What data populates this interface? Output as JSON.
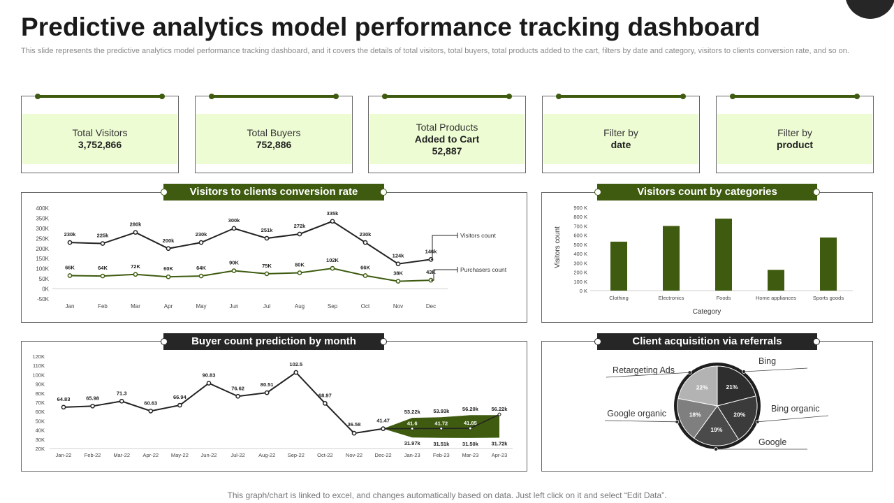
{
  "page": {
    "title": "Predictive analytics model performance tracking dashboard",
    "subtitle": "This slide represents the predictive analytics model performance tracking dashboard, and it covers the details of total visitors, total buyers, total products added to the cart, filters by date and category, visitors to clients conversion rate, and so on.",
    "footer": "This graph/chart is linked to excel,  and changes automatically based on data. Just left click on it and select “Edit Data”."
  },
  "kpis": [
    {
      "label": "Total Visitors",
      "value": "3,752,866"
    },
    {
      "label": "Total Buyers",
      "value": "752,886"
    },
    {
      "label": "Total Products",
      "label2": "Added to Cart",
      "value": "52,887"
    },
    {
      "label": "Filter by",
      "value": "date"
    },
    {
      "label": "Filter by",
      "value": "product"
    }
  ],
  "colors": {
    "accent_green": "#3e5b10",
    "band_green": "#eefcd4",
    "dark": "#262626"
  },
  "chart_data": [
    {
      "type": "line",
      "title": "Visitors to clients conversion rate",
      "categories": [
        "Jan",
        "Feb",
        "Mar",
        "Apr",
        "May",
        "Jun",
        "Jul",
        "Aug",
        "Sep",
        "Oct",
        "Nov",
        "Dec"
      ],
      "series": [
        {
          "name": "Visitors count",
          "values": [
            230,
            225,
            280,
            200,
            230,
            300,
            251,
            272,
            335,
            230,
            124,
            146
          ],
          "labels": [
            "230k",
            "225k",
            "280k",
            "200k",
            "230k",
            "300k",
            "251k",
            "272k",
            "335k",
            "230k",
            "124k",
            "146k"
          ],
          "color": "#222222"
        },
        {
          "name": "Purchasers count",
          "values": [
            66,
            64,
            72,
            60,
            64,
            90,
            75,
            80,
            102,
            66,
            38,
            43
          ],
          "labels": [
            "66K",
            "64K",
            "72K",
            "60K",
            "64K",
            "90K",
            "75K",
            "80K",
            "102K",
            "66K",
            "38K",
            "43K"
          ],
          "color": "#3e5b10"
        }
      ],
      "yticks": [
        "400K",
        "350K",
        "300K",
        "250K",
        "200K",
        "150K",
        "100K",
        "50K",
        "0K",
        "-50K"
      ],
      "ylim": [
        -50,
        400
      ],
      "unit": "K"
    },
    {
      "type": "bar",
      "title": "Visitors count by categories",
      "categories": [
        "Clothing",
        "Electronics",
        "Foods",
        "Home appliances",
        "Sports goods"
      ],
      "values": [
        530,
        700,
        780,
        225,
        575
      ],
      "yticks": [
        "900 K",
        "800 K",
        "700 K",
        "600 K",
        "500 K",
        "400 K",
        "300 K",
        "200 K",
        "100 K",
        "0 K"
      ],
      "ylim": [
        0,
        900
      ],
      "xlabel": "Category",
      "ylabel": "Visitors count",
      "color": "#3e5b10"
    },
    {
      "type": "line",
      "title": "Buyer count prediction by month",
      "categories": [
        "Jan-22",
        "Feb-22",
        "Mar-22",
        "Apr-22",
        "May-22",
        "Jun-22",
        "Jul-22",
        "Aug-22",
        "Sep-22",
        "Oct-22",
        "Nov-22",
        "Dec-22",
        "Jan-23",
        "Feb-23",
        "Mar-23",
        "Apr-23"
      ],
      "actual": [
        64.83,
        65.98,
        71.3,
        60.63,
        66.94,
        90.83,
        76.62,
        80.51,
        102.5,
        68.97,
        36.58,
        41.47
      ],
      "forecast": [
        41.6,
        41.72,
        41.85,
        57
      ],
      "forecast_upper": [
        53.22,
        53.93,
        56.2,
        56.22
      ],
      "forecast_lower": [
        31.97,
        31.51,
        31.5,
        31.72
      ],
      "actual_labels": [
        "64.83",
        "65.98",
        "71.3",
        "60.63",
        "66.94",
        "90.83",
        "76.62",
        "80.51",
        "102.5",
        "68.97",
        "36.58",
        "41.47"
      ],
      "forecast_labels": [
        "41.6",
        "41.72",
        "41.85",
        "57"
      ],
      "upper_labels": [
        "53.22k",
        "53.93k",
        "56.20k",
        "56.22k"
      ],
      "lower_labels": [
        "31.97k",
        "31.51k",
        "31.50k",
        "31.72k"
      ],
      "yticks": [
        "120K",
        "110K",
        "100K",
        "90K",
        "80K",
        "70K",
        "60K",
        "50K",
        "40K",
        "30K",
        "20K"
      ],
      "ylim": [
        20,
        120
      ]
    },
    {
      "type": "pie",
      "title": "Client acquisition via referrals",
      "slices": [
        {
          "name": "Bing",
          "value": 21,
          "label": "21%",
          "color": "#2e2e2e"
        },
        {
          "name": "Bing organic",
          "value": 20,
          "label": "20%",
          "color": "#3b3b3b"
        },
        {
          "name": "Google",
          "value": 19,
          "label": "19%",
          "color": "#4a4a4a"
        },
        {
          "name": "Google organic",
          "value": 18,
          "label": "18%",
          "color": "#7f7f7f"
        },
        {
          "name": "Retargeting Ads",
          "value": 22,
          "label": "22%",
          "color": "#b3b3b3"
        }
      ]
    }
  ]
}
